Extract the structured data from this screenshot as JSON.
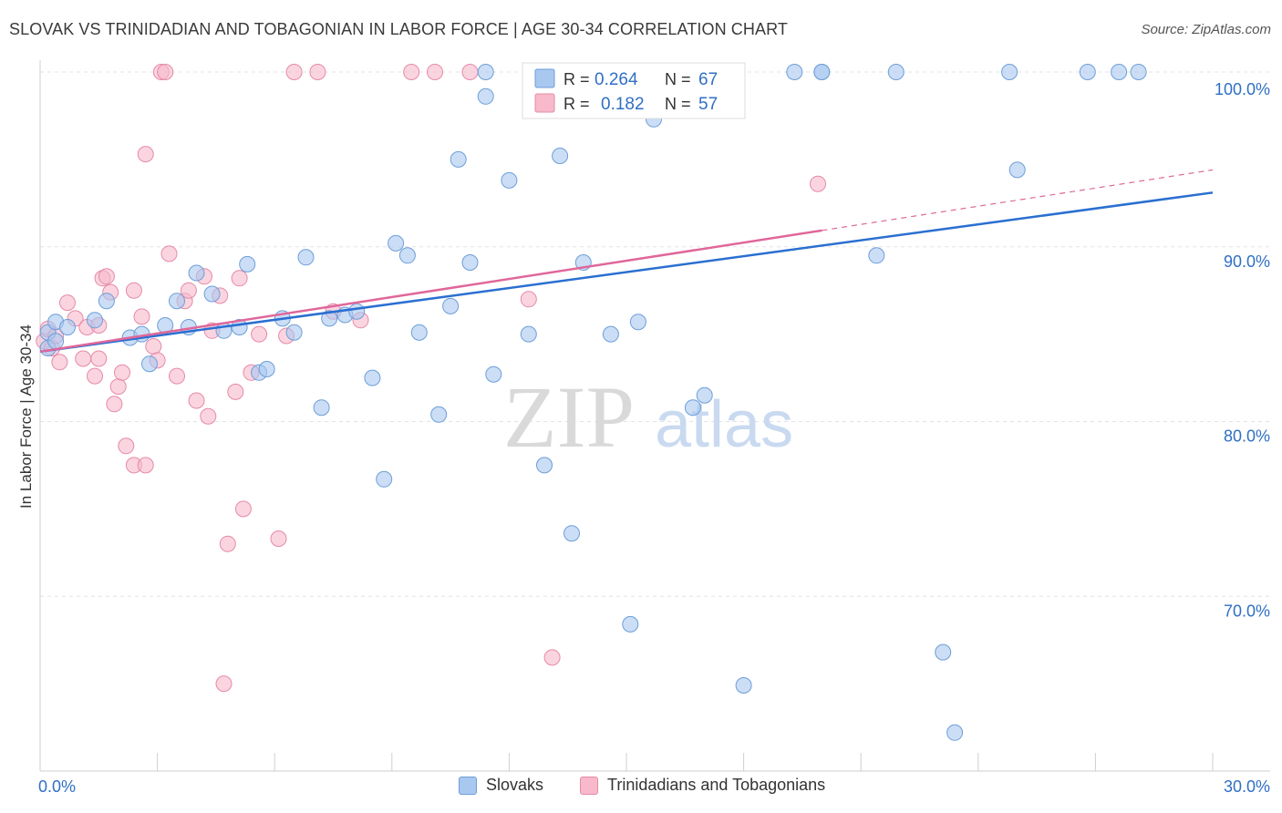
{
  "title": "SLOVAK VS TRINIDADIAN AND TOBAGONIAN IN LABOR FORCE | AGE 30-34 CORRELATION CHART",
  "source": "Source: ZipAtlas.com",
  "watermark": {
    "zip": "ZIP",
    "atlas": "atlas"
  },
  "colors": {
    "slovaks_fill": "#a9c8f0",
    "slovaks_stroke": "#6d9ed8",
    "slovaks_line": "#2a6fd1",
    "trini_fill": "#f7b9cb",
    "trini_stroke": "#e68aa8",
    "trini_line": "#e0679a",
    "value_text": "#2f6fc4"
  },
  "legend_top": [
    {
      "r_label": "R =",
      "r_value": "0.264",
      "n_label": "N =",
      "n_value": "67"
    },
    {
      "r_label": "R =",
      "r_value": "0.182",
      "n_label": "N =",
      "n_value": "57"
    }
  ],
  "legend_bottom": [
    "Slovaks",
    "Trinidadians and Tobagonians"
  ],
  "chart_data": {
    "type": "scatter",
    "title": "SLOVAK VS TRINIDADIAN AND TOBAGONIAN IN LABOR FORCE | AGE 30-34 CORRELATION CHART",
    "xlabel": "",
    "ylabel": "In Labor Force | Age 30-34",
    "xlim": [
      0,
      30
    ],
    "ylim": [
      60,
      100
    ],
    "x_tick_labels": [
      "0.0%",
      "30.0%"
    ],
    "y_ticks": [
      70,
      80,
      90,
      100
    ],
    "y_tick_labels": [
      "70.0%",
      "80.0%",
      "90.0%",
      "100.0%"
    ],
    "grid": true,
    "legend_position": "top-center",
    "series": [
      {
        "name": "Slovaks",
        "r": 0.264,
        "n": 67,
        "trend": {
          "x": [
            0,
            30
          ],
          "y": [
            84.0,
            93.1
          ]
        },
        "points": [
          [
            0.2,
            84.2
          ],
          [
            0.2,
            85.1
          ],
          [
            0.4,
            84.6
          ],
          [
            0.4,
            85.7
          ],
          [
            0.7,
            85.4
          ],
          [
            1.4,
            85.8
          ],
          [
            1.7,
            86.9
          ],
          [
            2.3,
            84.8
          ],
          [
            2.6,
            85.0
          ],
          [
            2.8,
            83.3
          ],
          [
            3.2,
            85.5
          ],
          [
            3.5,
            86.9
          ],
          [
            3.8,
            85.4
          ],
          [
            4.0,
            88.5
          ],
          [
            4.4,
            87.3
          ],
          [
            4.7,
            85.2
          ],
          [
            5.1,
            85.4
          ],
          [
            5.3,
            89.0
          ],
          [
            5.6,
            82.8
          ],
          [
            5.8,
            83.0
          ],
          [
            6.2,
            85.9
          ],
          [
            6.5,
            85.1
          ],
          [
            6.8,
            89.4
          ],
          [
            7.2,
            80.8
          ],
          [
            7.4,
            85.9
          ],
          [
            7.8,
            86.1
          ],
          [
            8.1,
            86.3
          ],
          [
            8.5,
            82.5
          ],
          [
            8.8,
            76.7
          ],
          [
            9.1,
            90.2
          ],
          [
            9.4,
            89.5
          ],
          [
            9.7,
            85.1
          ],
          [
            10.2,
            80.4
          ],
          [
            10.5,
            86.6
          ],
          [
            10.7,
            95.0
          ],
          [
            11.0,
            89.1
          ],
          [
            11.4,
            100.0
          ],
          [
            11.4,
            98.6
          ],
          [
            11.6,
            82.7
          ],
          [
            12.0,
            93.8
          ],
          [
            12.5,
            85.0
          ],
          [
            12.6,
            100.0
          ],
          [
            12.9,
            77.5
          ],
          [
            13.3,
            95.2
          ],
          [
            13.5,
            100.0
          ],
          [
            13.6,
            73.6
          ],
          [
            13.9,
            89.1
          ],
          [
            14.6,
            85.0
          ],
          [
            15.1,
            68.4
          ],
          [
            15.3,
            85.7
          ],
          [
            15.7,
            97.3
          ],
          [
            16.0,
            100.0
          ],
          [
            16.7,
            80.8
          ],
          [
            17.0,
            81.5
          ],
          [
            18.0,
            64.9
          ],
          [
            19.3,
            100.0
          ],
          [
            20.0,
            100.0
          ],
          [
            20.0,
            100.0
          ],
          [
            21.4,
            89.5
          ],
          [
            21.9,
            100.0
          ],
          [
            23.1,
            66.8
          ],
          [
            23.4,
            62.2
          ],
          [
            24.8,
            100.0
          ],
          [
            25.0,
            94.4
          ],
          [
            26.8,
            100.0
          ],
          [
            27.6,
            100.0
          ],
          [
            28.1,
            100.0
          ]
        ]
      },
      {
        "name": "Trinidadians and Tobagonians",
        "r": 0.182,
        "n": 57,
        "trend": {
          "x": [
            0,
            30
          ],
          "y": [
            84.0,
            94.4
          ]
        },
        "trend_solid_until_x": 20.0,
        "points": [
          [
            0.1,
            84.6
          ],
          [
            0.2,
            85.3
          ],
          [
            0.3,
            84.2
          ],
          [
            0.4,
            84.9
          ],
          [
            0.5,
            83.4
          ],
          [
            0.7,
            86.8
          ],
          [
            0.9,
            85.9
          ],
          [
            1.1,
            83.6
          ],
          [
            1.2,
            85.4
          ],
          [
            1.4,
            82.6
          ],
          [
            1.5,
            83.6
          ],
          [
            1.5,
            85.5
          ],
          [
            1.6,
            88.2
          ],
          [
            1.7,
            88.3
          ],
          [
            1.8,
            87.4
          ],
          [
            1.9,
            81.0
          ],
          [
            2.0,
            82.0
          ],
          [
            2.1,
            82.8
          ],
          [
            2.2,
            78.6
          ],
          [
            2.4,
            77.5
          ],
          [
            2.4,
            87.5
          ],
          [
            2.6,
            86.0
          ],
          [
            2.7,
            95.3
          ],
          [
            2.7,
            77.5
          ],
          [
            2.9,
            84.3
          ],
          [
            3.0,
            83.5
          ],
          [
            3.1,
            100.0
          ],
          [
            3.2,
            100.0
          ],
          [
            3.3,
            89.6
          ],
          [
            3.5,
            82.6
          ],
          [
            3.7,
            86.9
          ],
          [
            3.8,
            87.5
          ],
          [
            4.0,
            81.2
          ],
          [
            4.2,
            88.3
          ],
          [
            4.3,
            80.3
          ],
          [
            4.4,
            85.2
          ],
          [
            4.6,
            87.2
          ],
          [
            4.7,
            65.0
          ],
          [
            4.8,
            73.0
          ],
          [
            5.0,
            81.7
          ],
          [
            5.1,
            88.2
          ],
          [
            5.2,
            75.0
          ],
          [
            5.4,
            82.8
          ],
          [
            5.6,
            85.0
          ],
          [
            6.1,
            73.3
          ],
          [
            6.3,
            84.9
          ],
          [
            6.5,
            100.0
          ],
          [
            7.1,
            100.0
          ],
          [
            7.5,
            86.3
          ],
          [
            8.2,
            85.8
          ],
          [
            9.5,
            100.0
          ],
          [
            10.1,
            100.0
          ],
          [
            11.0,
            100.0
          ],
          [
            12.5,
            87.0
          ],
          [
            12.9,
            100.0
          ],
          [
            13.1,
            66.5
          ],
          [
            19.9,
            93.6
          ]
        ]
      }
    ]
  }
}
